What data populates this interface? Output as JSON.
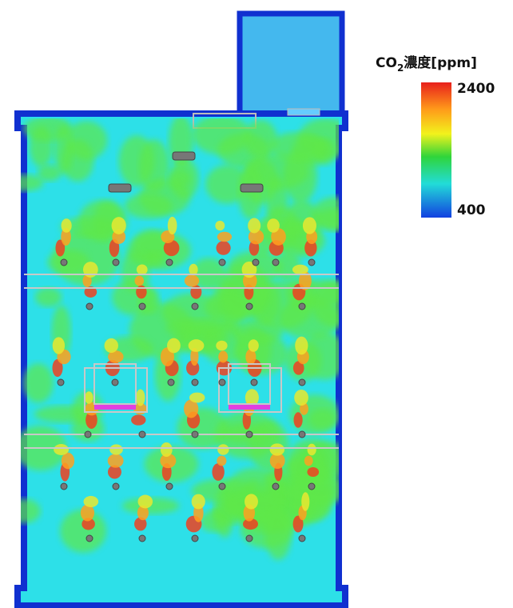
{
  "colorbar": {
    "title": {
      "main": "CO",
      "subscript": "2",
      "rest": "濃度[ppm]"
    },
    "max_label": "2400",
    "min_label": "400"
  }
}
